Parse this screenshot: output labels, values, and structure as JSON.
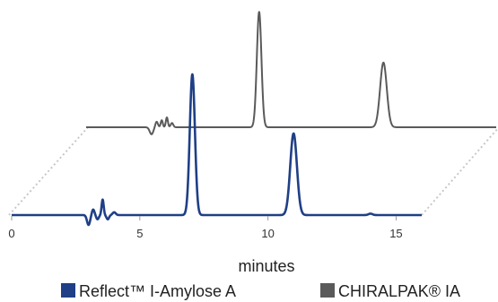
{
  "chart_data": {
    "type": "line",
    "title": "",
    "xlabel": "minutes",
    "ylabel": "",
    "xlim": [
      0,
      16
    ],
    "x_ticks": [
      0,
      5,
      10,
      15
    ],
    "x_tick_labels": [
      "0",
      "5",
      "10",
      "15"
    ],
    "grid": false,
    "legend_position": "bottom",
    "layout_style": "3d-offset-stacked",
    "series": [
      {
        "name": "Reflect™ I-Amylose A",
        "color": "#1f3f86",
        "layer": "front",
        "peaks": [
          {
            "x": 3.0,
            "height": -0.07,
            "width": 0.06
          },
          {
            "x": 3.18,
            "height": 0.04,
            "width": 0.05
          },
          {
            "x": 3.35,
            "height": -0.03,
            "width": 0.05
          },
          {
            "x": 3.55,
            "height": 0.11,
            "width": 0.04
          },
          {
            "x": 3.75,
            "height": -0.03,
            "width": 0.05
          },
          {
            "x": 4.0,
            "height": 0.02,
            "width": 0.06
          },
          {
            "x": 7.05,
            "height": 1.0,
            "width": 0.1
          },
          {
            "x": 11.0,
            "height": 0.58,
            "width": 0.13
          },
          {
            "x": 14.0,
            "height": 0.01,
            "width": 0.08
          }
        ]
      },
      {
        "name": "CHIRALPAK® IA",
        "color": "#5a5a5a",
        "layer": "back",
        "peaks": [
          {
            "x": 2.55,
            "height": -0.05,
            "width": 0.07
          },
          {
            "x": 2.75,
            "height": 0.04,
            "width": 0.05
          },
          {
            "x": 2.95,
            "height": 0.05,
            "width": 0.04
          },
          {
            "x": 3.15,
            "height": 0.07,
            "width": 0.04
          },
          {
            "x": 3.35,
            "height": 0.03,
            "width": 0.05
          },
          {
            "x": 6.75,
            "height": 0.82,
            "width": 0.09
          },
          {
            "x": 11.6,
            "height": 0.46,
            "width": 0.13
          }
        ]
      }
    ]
  }
}
